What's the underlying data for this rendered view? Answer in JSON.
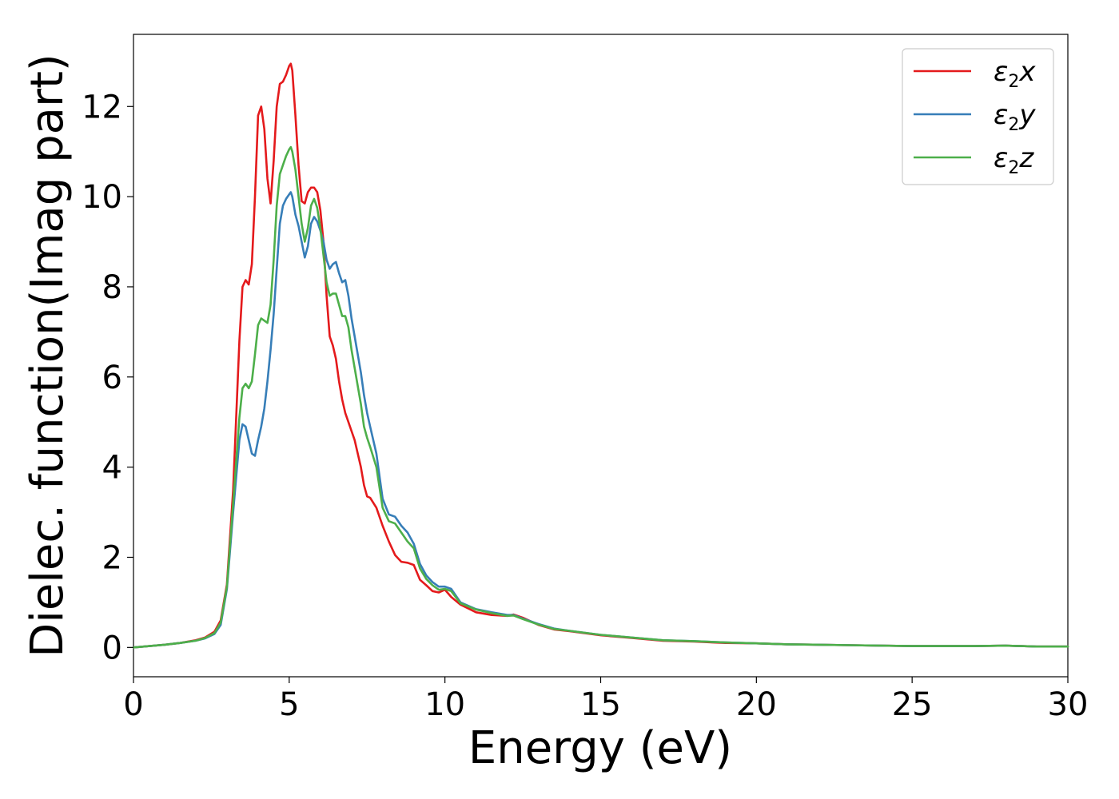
{
  "chart_data": {
    "type": "line",
    "xlabel": "Energy (eV)",
    "ylabel": "Dielec. function(Imag part)",
    "xlim": [
      0,
      30
    ],
    "ylim": [
      -0.65,
      13.6
    ],
    "xticks": [
      0,
      5,
      10,
      15,
      20,
      25,
      30
    ],
    "yticks": [
      0,
      2,
      4,
      6,
      8,
      10,
      12
    ],
    "grid": false,
    "legend_position": "top-right",
    "series": [
      {
        "name": "ε2x",
        "label_base": "ε",
        "label_sub": "2",
        "label_var": "x",
        "color": "#e41a1c",
        "x": [
          0,
          1,
          1.5,
          2,
          2.3,
          2.6,
          2.8,
          3,
          3.2,
          3.4,
          3.5,
          3.6,
          3.7,
          3.8,
          3.9,
          4,
          4.1,
          4.2,
          4.3,
          4.4,
          4.5,
          4.6,
          4.7,
          4.8,
          4.9,
          5,
          5.05,
          5.1,
          5.2,
          5.3,
          5.4,
          5.5,
          5.6,
          5.7,
          5.8,
          5.9,
          6,
          6.1,
          6.2,
          6.3,
          6.4,
          6.5,
          6.6,
          6.7,
          6.8,
          6.9,
          7,
          7.1,
          7.2,
          7.3,
          7.4,
          7.5,
          7.6,
          7.8,
          8,
          8.2,
          8.4,
          8.6,
          8.8,
          9,
          9.2,
          9.4,
          9.6,
          9.8,
          10,
          10.2,
          10.5,
          11,
          11.5,
          12,
          12.2,
          12.5,
          13,
          13.5,
          14,
          15,
          16,
          17,
          18,
          19,
          20,
          21,
          22,
          23,
          24,
          25,
          26,
          27,
          28,
          28.5,
          29,
          30
        ],
        "y": [
          0,
          0.06,
          0.1,
          0.16,
          0.22,
          0.35,
          0.6,
          1.4,
          3.5,
          6.8,
          8,
          8.15,
          8.05,
          8.5,
          10,
          11.8,
          12,
          11.5,
          10.4,
          9.85,
          10.8,
          12,
          12.5,
          12.55,
          12.7,
          12.9,
          12.95,
          12.8,
          11.8,
          10.7,
          9.9,
          9.85,
          10.1,
          10.2,
          10.2,
          10.1,
          9.7,
          9,
          7.8,
          6.9,
          6.7,
          6.4,
          5.9,
          5.5,
          5.2,
          5,
          4.8,
          4.6,
          4.3,
          4,
          3.6,
          3.35,
          3.32,
          3.1,
          2.7,
          2.35,
          2.05,
          1.9,
          1.88,
          1.83,
          1.5,
          1.38,
          1.25,
          1.22,
          1.28,
          1.12,
          0.95,
          0.78,
          0.72,
          0.7,
          0.73,
          0.66,
          0.5,
          0.4,
          0.36,
          0.27,
          0.21,
          0.15,
          0.13,
          0.1,
          0.09,
          0.07,
          0.06,
          0.05,
          0.04,
          0.03,
          0.03,
          0.03,
          0.04,
          0.03,
          0.02,
          0.02
        ]
      },
      {
        "name": "ε2y",
        "label_base": "ε",
        "label_sub": "2",
        "label_var": "y",
        "color": "#377eb8",
        "x": [
          0,
          1,
          1.5,
          2,
          2.3,
          2.6,
          2.8,
          3,
          3.2,
          3.4,
          3.5,
          3.6,
          3.7,
          3.8,
          3.9,
          4,
          4.1,
          4.2,
          4.3,
          4.4,
          4.5,
          4.6,
          4.7,
          4.8,
          4.9,
          5,
          5.05,
          5.1,
          5.2,
          5.3,
          5.4,
          5.5,
          5.6,
          5.7,
          5.8,
          5.9,
          6,
          6.1,
          6.2,
          6.3,
          6.4,
          6.5,
          6.6,
          6.7,
          6.8,
          6.9,
          7,
          7.1,
          7.2,
          7.3,
          7.4,
          7.5,
          7.6,
          7.8,
          8,
          8.2,
          8.4,
          8.6,
          8.8,
          9,
          9.2,
          9.4,
          9.6,
          9.8,
          10,
          10.2,
          10.5,
          11,
          11.5,
          12,
          12.2,
          12.5,
          13,
          13.5,
          14,
          15,
          16,
          17,
          18,
          19,
          20,
          21,
          22,
          23,
          24,
          25,
          26,
          27,
          28,
          28.5,
          29,
          30
        ],
        "y": [
          0,
          0.06,
          0.1,
          0.15,
          0.2,
          0.3,
          0.5,
          1.3,
          3,
          4.6,
          4.95,
          4.9,
          4.6,
          4.3,
          4.25,
          4.6,
          4.9,
          5.3,
          5.9,
          6.6,
          7.4,
          8.4,
          9.4,
          9.8,
          9.95,
          10.05,
          10.1,
          10,
          9.6,
          9.35,
          9,
          8.65,
          8.9,
          9.4,
          9.55,
          9.45,
          9.25,
          9,
          8.6,
          8.4,
          8.5,
          8.55,
          8.3,
          8.1,
          8.15,
          7.8,
          7.3,
          6.9,
          6.5,
          6.1,
          5.6,
          5.2,
          4.9,
          4.3,
          3.3,
          2.95,
          2.9,
          2.7,
          2.55,
          2.3,
          1.85,
          1.6,
          1.45,
          1.35,
          1.35,
          1.3,
          1,
          0.85,
          0.78,
          0.72,
          0.72,
          0.64,
          0.52,
          0.42,
          0.37,
          0.28,
          0.22,
          0.16,
          0.14,
          0.11,
          0.09,
          0.07,
          0.06,
          0.05,
          0.04,
          0.03,
          0.03,
          0.03,
          0.04,
          0.03,
          0.02,
          0.02
        ]
      },
      {
        "name": "ε2z",
        "label_base": "ε",
        "label_sub": "2",
        "label_var": "z",
        "color": "#4daf4a",
        "x": [
          0,
          1,
          1.5,
          2,
          2.3,
          2.6,
          2.8,
          3,
          3.2,
          3.4,
          3.5,
          3.6,
          3.7,
          3.8,
          3.9,
          4,
          4.1,
          4.2,
          4.3,
          4.4,
          4.5,
          4.6,
          4.7,
          4.8,
          4.9,
          5,
          5.05,
          5.1,
          5.2,
          5.3,
          5.4,
          5.5,
          5.6,
          5.7,
          5.8,
          5.9,
          6,
          6.1,
          6.2,
          6.3,
          6.4,
          6.5,
          6.6,
          6.7,
          6.8,
          6.9,
          7,
          7.1,
          7.2,
          7.3,
          7.4,
          7.5,
          7.6,
          7.8,
          8,
          8.2,
          8.4,
          8.6,
          8.8,
          9,
          9.2,
          9.4,
          9.6,
          9.8,
          10,
          10.2,
          10.5,
          11,
          11.5,
          12,
          12.2,
          12.5,
          13,
          13.5,
          14,
          15,
          16,
          17,
          18,
          19,
          20,
          21,
          22,
          23,
          24,
          25,
          26,
          27,
          28,
          28.5,
          29,
          30
        ],
        "y": [
          0,
          0.06,
          0.1,
          0.15,
          0.21,
          0.32,
          0.55,
          1.35,
          3.2,
          5.1,
          5.75,
          5.85,
          5.75,
          5.9,
          6.5,
          7.15,
          7.3,
          7.25,
          7.2,
          7.6,
          8.6,
          9.8,
          10.5,
          10.7,
          10.9,
          11.05,
          11.1,
          11,
          10.6,
          10,
          9.4,
          9,
          9.3,
          9.8,
          9.95,
          9.75,
          9.3,
          8.7,
          8.1,
          7.8,
          7.85,
          7.85,
          7.6,
          7.35,
          7.35,
          7.1,
          6.6,
          6.2,
          5.8,
          5.4,
          4.9,
          4.65,
          4.45,
          4,
          3.1,
          2.8,
          2.75,
          2.55,
          2.35,
          2.2,
          1.75,
          1.52,
          1.38,
          1.28,
          1.3,
          1.25,
          0.98,
          0.84,
          0.76,
          0.7,
          0.71,
          0.63,
          0.51,
          0.41,
          0.37,
          0.28,
          0.22,
          0.16,
          0.14,
          0.11,
          0.09,
          0.07,
          0.06,
          0.05,
          0.04,
          0.03,
          0.03,
          0.03,
          0.04,
          0.03,
          0.02,
          0.02
        ]
      }
    ]
  }
}
